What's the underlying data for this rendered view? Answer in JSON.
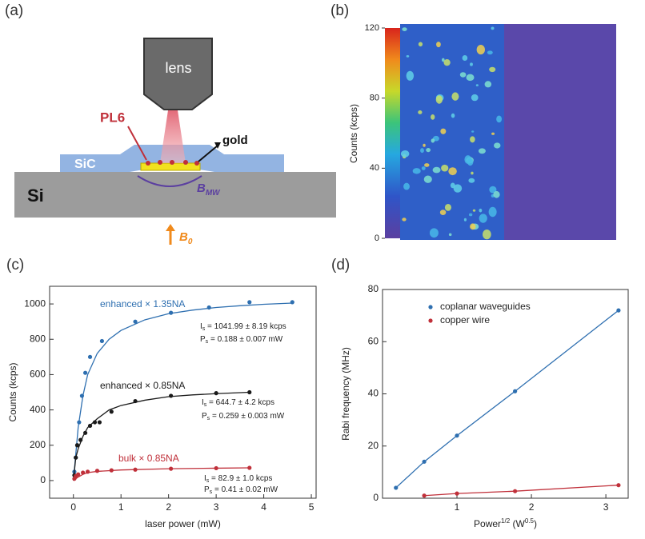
{
  "diagram": {
    "label": "(a)",
    "lens": "lens",
    "pl6": "PL6",
    "gold": "gold",
    "sic": "SiC",
    "si": "Si",
    "b_mw": "B",
    "b_mw_sub": "MW",
    "b_0": "B",
    "b_0_sub": "0"
  },
  "map": {
    "label": "(b)",
    "colorbar_label": "Counts (kcps)",
    "clim": [
      0,
      120
    ],
    "ticks": [
      0,
      40,
      80,
      120
    ]
  },
  "chart_data": [
    {
      "type": "line",
      "label": "(c)",
      "x_label": "laser power (mW)",
      "y_label": "Counts (kcps)",
      "xlim": [
        -0.5,
        5.1
      ],
      "ylim": [
        -100,
        1100
      ],
      "xticks": [
        0,
        1,
        2,
        3,
        4,
        5
      ],
      "yticks": [
        0,
        200,
        400,
        600,
        800,
        1000
      ],
      "series": [
        {
          "name": "enhanced × 1.35NA",
          "color": "#2e6fb0",
          "x": [
            0.02,
            0.05,
            0.08,
            0.12,
            0.18,
            0.25,
            0.35,
            0.6,
            1.3,
            2.05,
            2.85,
            3.7,
            4.6
          ],
          "values": [
            50,
            130,
            200,
            330,
            480,
            610,
            700,
            790,
            900,
            950,
            980,
            1010,
            1010
          ],
          "fit": {
            "x": [
              0,
              0.05,
              0.1,
              0.2,
              0.3,
              0.5,
              0.75,
              1,
              1.5,
              2,
              2.5,
              3,
              3.5,
              4,
              4.6
            ],
            "values": [
              0,
              150,
              300,
              480,
              600,
              720,
              800,
              850,
              910,
              945,
              965,
              980,
              990,
              998,
              1005
            ]
          },
          "annotation": [
            {
              "sym": "I",
              "sub": "s",
              "rest": " = 1041.99 ± 8.19 kcps"
            },
            {
              "sym": "P",
              "sub": "s",
              "rest": " = 0.188 ± 0.007 mW"
            }
          ]
        },
        {
          "name": "enhanced × 0.85NA",
          "color": "#1a1a1a",
          "x": [
            0.02,
            0.05,
            0.08,
            0.15,
            0.25,
            0.35,
            0.45,
            0.55,
            0.8,
            1.3,
            2.05,
            3.0,
            3.7
          ],
          "values": [
            30,
            130,
            200,
            230,
            270,
            310,
            330,
            330,
            390,
            450,
            480,
            495,
            500
          ],
          "fit": {
            "x": [
              0,
              0.05,
              0.1,
              0.2,
              0.3,
              0.5,
              0.75,
              1,
              1.5,
              2,
              2.5,
              3,
              3.7
            ],
            "values": [
              0,
              130,
              180,
              250,
              300,
              350,
              400,
              425,
              455,
              475,
              485,
              492,
              500
            ]
          },
          "annotation": [
            {
              "sym": "I",
              "sub": "s",
              "rest": " = 644.7 ± 4.2 kcps"
            },
            {
              "sym": "P",
              "sub": "s",
              "rest": " = 0.259 ± 0.003 mW"
            }
          ]
        },
        {
          "name": "bulk × 0.85NA",
          "color": "#c0303a",
          "x": [
            0.02,
            0.05,
            0.1,
            0.2,
            0.3,
            0.5,
            0.8,
            1.3,
            2.05,
            3.0,
            3.7
          ],
          "values": [
            10,
            25,
            35,
            45,
            50,
            55,
            58,
            62,
            67,
            70,
            72
          ],
          "fit": {
            "x": [
              0,
              0.1,
              0.2,
              0.3,
              0.5,
              1,
              2,
              3,
              3.7
            ],
            "values": [
              0,
              20,
              35,
              45,
              52,
              60,
              67,
              70,
              72
            ]
          },
          "annotation": [
            {
              "sym": "I",
              "sub": "s",
              "rest": " = 82.9 ± 1.0 kcps"
            },
            {
              "sym": "P",
              "sub": "s",
              "rest": " = 0.41 ± 0.02 mW"
            }
          ]
        }
      ]
    },
    {
      "type": "line",
      "label": "(d)",
      "x_label": [
        "Power",
        "1/2",
        " (W",
        "0.5",
        ")"
      ],
      "y_label": "Rabi frequency (MHz)",
      "xlim": [
        0,
        3.3
      ],
      "ylim": [
        0,
        80
      ],
      "xticks": [
        1,
        2,
        3
      ],
      "yticks": [
        0,
        20,
        40,
        60,
        80
      ],
      "legend": "upper-left",
      "series": [
        {
          "name": "coplanar waveguides",
          "color": "#2e6fb0",
          "x": [
            0.18,
            0.56,
            1.0,
            1.78,
            3.17
          ],
          "values": [
            4,
            14,
            24,
            41,
            72
          ]
        },
        {
          "name": "copper wire",
          "color": "#c0303a",
          "x": [
            0.56,
            1.0,
            1.78,
            3.17
          ],
          "values": [
            1,
            1.8,
            2.7,
            5
          ]
        }
      ]
    }
  ]
}
